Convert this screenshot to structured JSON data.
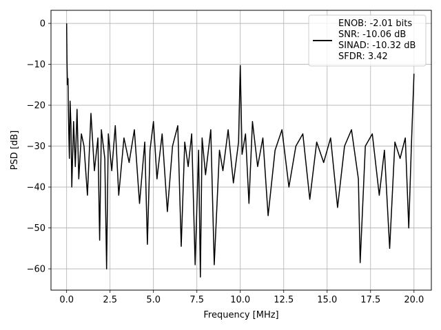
{
  "chart_data": {
    "type": "line",
    "xlabel": "Frequency [MHz]",
    "ylabel": "PSD [dB]",
    "xlim": [
      -0.9,
      21.0
    ],
    "ylim": [
      -65.2,
      3.2
    ],
    "xticks": [
      0.0,
      2.5,
      5.0,
      7.5,
      10.0,
      12.5,
      15.0,
      17.5,
      20.0
    ],
    "xtick_labels": [
      "0.0",
      "2.5",
      "5.0",
      "7.5",
      "10.0",
      "12.5",
      "15.0",
      "17.5",
      "20.0"
    ],
    "yticks": [
      0,
      -10,
      -20,
      -30,
      -40,
      -50,
      -60
    ],
    "ytick_labels": [
      "0",
      "−10",
      "−20",
      "−30",
      "−40",
      "−50",
      "−60"
    ],
    "grid": true,
    "legend_position": "top-right",
    "series": [
      {
        "color": "#000000",
        "legend_lines": [
          "ENOB: -2.01 bits",
          "SNR: -10.06 dB",
          "SINAD: -10.32 dB",
          "SFDR: 3.42"
        ],
        "x": [
          0.0,
          0.02,
          0.05,
          0.08,
          0.1,
          0.13,
          0.16,
          0.2,
          0.25,
          0.3,
          0.4,
          0.5,
          0.6,
          0.7,
          0.85,
          1.0,
          1.2,
          1.4,
          1.6,
          1.8,
          1.9,
          2.0,
          2.2,
          2.3,
          2.4,
          2.6,
          2.8,
          3.0,
          3.3,
          3.6,
          3.9,
          4.2,
          4.5,
          4.65,
          4.8,
          5.0,
          5.2,
          5.5,
          5.8,
          6.1,
          6.4,
          6.6,
          6.8,
          7.0,
          7.2,
          7.4,
          7.6,
          7.7,
          7.8,
          8.0,
          8.3,
          8.5,
          8.8,
          9.0,
          9.3,
          9.6,
          9.9,
          10.0,
          10.1,
          10.3,
          10.5,
          10.7,
          11.0,
          11.3,
          11.6,
          12.0,
          12.4,
          12.8,
          13.2,
          13.6,
          14.0,
          14.4,
          14.8,
          15.2,
          15.6,
          16.0,
          16.4,
          16.8,
          16.9,
          17.2,
          17.6,
          18.0,
          18.3,
          18.6,
          18.9,
          19.2,
          19.5,
          19.7,
          19.85,
          20.0
        ],
        "y": [
          0.0,
          -9.0,
          -15.0,
          -13.5,
          -21.0,
          -28.0,
          -33.0,
          -19.0,
          -25.0,
          -40.0,
          -24.0,
          -35.0,
          -21.0,
          -38.0,
          -27.0,
          -30.0,
          -42.0,
          -22.0,
          -36.0,
          -28.0,
          -53.0,
          -26.0,
          -33.0,
          -60.0,
          -27.0,
          -36.0,
          -25.0,
          -42.0,
          -28.0,
          -34.0,
          -26.0,
          -44.0,
          -29.0,
          -54.0,
          -31.0,
          -24.0,
          -38.0,
          -27.0,
          -46.0,
          -30.0,
          -25.0,
          -54.5,
          -29.0,
          -35.0,
          -27.0,
          -59.0,
          -31.0,
          -62.0,
          -28.0,
          -37.0,
          -26.0,
          -59.0,
          -31.0,
          -36.0,
          -26.0,
          -39.0,
          -29.0,
          -10.3,
          -32.0,
          -27.0,
          -44.0,
          -24.0,
          -35.0,
          -28.0,
          -47.0,
          -31.0,
          -26.0,
          -40.0,
          -30.0,
          -27.0,
          -43.0,
          -29.0,
          -34.0,
          -28.0,
          -45.0,
          -30.0,
          -26.0,
          -38.0,
          -58.5,
          -30.0,
          -27.0,
          -42.0,
          -31.0,
          -55.0,
          -29.0,
          -33.0,
          -28.0,
          -50.0,
          -30.0,
          -12.3
        ]
      }
    ]
  }
}
